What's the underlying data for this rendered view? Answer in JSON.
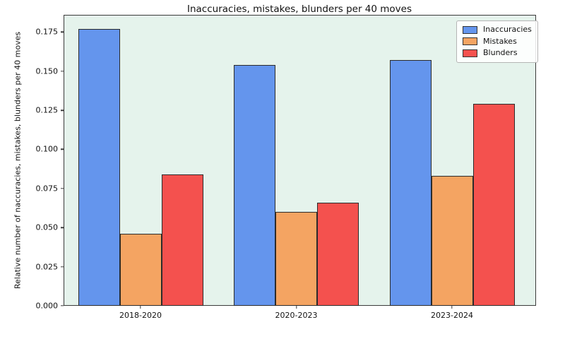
{
  "chart_data": {
    "type": "bar",
    "title": "Inaccuracies, mistakes, blunders per 40 moves",
    "ylabel": "Relative number of naccuracies, mistakes, blunders per 40 moves",
    "xlabel": "",
    "categories": [
      "2018-2020",
      "2020-2023",
      "2023-2024"
    ],
    "series": [
      {
        "name": "Inaccuracies",
        "color": "#6495ed",
        "values": [
          0.177,
          0.154,
          0.157
        ]
      },
      {
        "name": "Mistakes",
        "color": "#f4a462",
        "values": [
          0.046,
          0.06,
          0.083
        ]
      },
      {
        "name": "Blunders",
        "color": "#f4514e",
        "values": [
          0.084,
          0.066,
          0.129
        ]
      }
    ],
    "yticks": [
      0.0,
      0.025,
      0.05,
      0.075,
      0.1,
      0.125,
      0.15,
      0.175
    ],
    "ytick_labels": [
      "0.000",
      "0.025",
      "0.050",
      "0.075",
      "0.100",
      "0.125",
      "0.150",
      "0.175"
    ],
    "ylim": [
      0,
      0.186
    ],
    "grid": false,
    "legend_position": "upper right",
    "plot_bg_color": "#e5f3ec",
    "bar_edge_color": "#2b2b2b"
  }
}
